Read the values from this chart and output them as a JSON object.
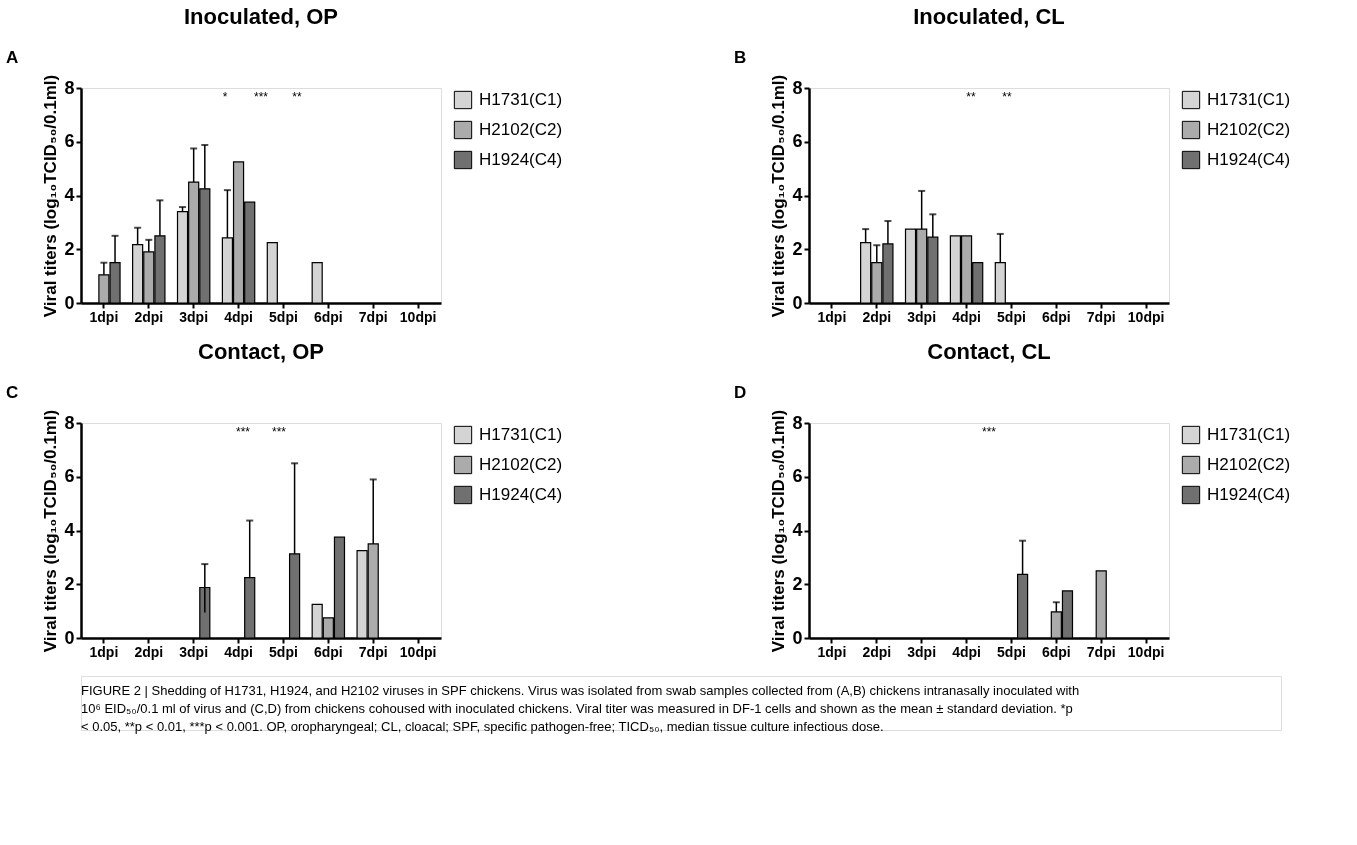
{
  "chart_data": [
    {
      "type": "bar",
      "title": "Inoculated, OP",
      "ylabel": "Viral titers (log₁₀TCID₅₀/0.1ml)",
      "categories": [
        "1dpi",
        "2dpi",
        "3dpi",
        "4dpi",
        "5dpi",
        "6dpi",
        "7dpi",
        "10dpi"
      ],
      "ylim": [
        0,
        8
      ],
      "yticks": [
        0,
        2,
        4,
        6,
        8
      ],
      "grid": false,
      "legend": "top right",
      "series": [
        {
          "name": "H1731(C1)",
          "color": "#d4d4d4",
          "values": [
            null,
            2.17,
            3.4,
            2.42,
            2.25,
            1.5,
            null,
            null
          ],
          "errors": [
            null,
            [
              2.17,
              2.8
            ],
            [
              3.4,
              3.57
            ],
            [
              2.42,
              4.2
            ],
            null,
            null,
            null,
            null
          ]
        },
        {
          "name": "H2102(C2)",
          "color": "#ababab",
          "values": [
            1.05,
            1.9,
            4.5,
            5.25,
            null,
            null,
            null,
            null
          ],
          "errors": [
            [
              1.05,
              1.5
            ],
            [
              1.9,
              2.35
            ],
            [
              4.5,
              5.75
            ],
            null,
            null,
            null,
            null,
            null
          ]
        },
        {
          "name": "H1924(C4)",
          "color": "#707070",
          "values": [
            1.5,
            2.5,
            4.25,
            3.75,
            null,
            null,
            null,
            null
          ],
          "errors": [
            [
              1.5,
              2.5
            ],
            [
              2.5,
              3.82
            ],
            [
              4.25,
              5.88
            ],
            null,
            null,
            null,
            null,
            null
          ]
        }
      ],
      "annotations": [
        "A",
        "*",
        "***",
        "**"
      ]
    },
    {
      "type": "bar",
      "title": "Inoculated, CL",
      "ylabel": "Viral titers (log₁₀TCID₅₀/0.1ml)",
      "categories": [
        "1dpi",
        "2dpi",
        "3dpi",
        "4dpi",
        "5dpi",
        "6dpi",
        "7dpi",
        "10dpi"
      ],
      "ylim": [
        0,
        8
      ],
      "yticks": [
        0,
        2,
        4,
        6,
        8
      ],
      "grid": false,
      "legend": "top right",
      "series": [
        {
          "name": "H1731(C1)",
          "color": "#d4d4d4",
          "values": [
            null,
            2.25,
            2.75,
            2.5,
            1.5,
            null,
            null,
            null
          ],
          "errors": [
            null,
            [
              2.25,
              2.75
            ],
            null,
            null,
            [
              1.5,
              2.57
            ],
            null,
            null,
            null
          ]
        },
        {
          "name": "H2102(C2)",
          "color": "#ababab",
          "values": [
            null,
            1.5,
            2.75,
            2.5,
            null,
            null,
            null,
            null
          ],
          "errors": [
            null,
            [
              1.5,
              2.15
            ],
            [
              2.75,
              4.17
            ],
            null,
            null,
            null,
            null,
            null
          ]
        },
        {
          "name": "H1924(C4)",
          "color": "#707070",
          "values": [
            null,
            2.2,
            2.45,
            1.5,
            null,
            null,
            null,
            null
          ],
          "errors": [
            null,
            [
              2.2,
              3.05
            ],
            [
              2.45,
              3.3
            ],
            null,
            null,
            null,
            null,
            null
          ]
        }
      ],
      "annotations": [
        "B",
        "**",
        "**"
      ]
    },
    {
      "type": "bar",
      "title": "Contact, OP",
      "ylabel": "Viral titers (log₁₀TCID₅₀/0.1ml)",
      "categories": [
        "1dpi",
        "2dpi",
        "3dpi",
        "4dpi",
        "5dpi",
        "6dpi",
        "7dpi",
        "10dpi"
      ],
      "ylim": [
        0,
        8
      ],
      "yticks": [
        0,
        2,
        4,
        6,
        8
      ],
      "grid": false,
      "legend": "top right",
      "series": [
        {
          "name": "H1731(C1)",
          "color": "#d4d4d4",
          "values": [
            null,
            null,
            null,
            null,
            null,
            1.25,
            3.25,
            null
          ]
        },
        {
          "name": "H2102(C2)",
          "color": "#ababab",
          "values": [
            null,
            null,
            null,
            null,
            null,
            0.75,
            3.5,
            null
          ],
          "errors": [
            null,
            null,
            null,
            null,
            null,
            null,
            [
              3.5,
              5.9
            ],
            null
          ]
        },
        {
          "name": "H1924(C4)",
          "color": "#707070",
          "values": [
            null,
            null,
            1.88,
            2.25,
            3.13,
            3.75,
            null,
            null
          ],
          "errors": [
            null,
            null,
            [
              0.95,
              2.75
            ],
            [
              2.25,
              4.37
            ],
            [
              3.13,
              6.5
            ],
            null,
            null,
            null
          ]
        }
      ],
      "annotations": [
        "C",
        "***",
        "***"
      ]
    },
    {
      "type": "bar",
      "title": "Contact, CL",
      "ylabel": "Viral titers (log₁₀TCID₅₀/0.1ml)",
      "categories": [
        "1dpi",
        "2dpi",
        "3dpi",
        "4dpi",
        "5dpi",
        "6dpi",
        "7dpi",
        "10dpi"
      ],
      "ylim": [
        0,
        8
      ],
      "yticks": [
        0,
        2,
        4,
        6,
        8
      ],
      "grid": false,
      "legend": "top right",
      "series": [
        {
          "name": "H1731(C1)",
          "color": "#d4d4d4",
          "values": [
            null,
            null,
            null,
            null,
            null,
            null,
            null,
            null
          ]
        },
        {
          "name": "H2102(C2)",
          "color": "#ababab",
          "values": [
            null,
            null,
            null,
            null,
            null,
            0.97,
            2.5,
            null
          ],
          "errors": [
            null,
            null,
            null,
            null,
            null,
            [
              0.97,
              1.33
            ],
            null,
            null
          ]
        },
        {
          "name": "H1924(C4)",
          "color": "#707070",
          "values": [
            null,
            null,
            null,
            null,
            2.37,
            1.75,
            null,
            null
          ],
          "errors": [
            null,
            null,
            null,
            null,
            [
              2.37,
              3.62
            ],
            null,
            null,
            null
          ]
        }
      ],
      "annotations": [
        "D",
        "***",
        "FIGURE 2 | Shedding of H1731, H1924, and H2102 viruses in SPF chickens. Virus was isolated from swab samples collected from (A,B) chickens intranasally inoculated with 10⁶ EID₅₀/0.1 ml of virus and (C,D) from chickens cohoused with inoculated chickens. Viral titer was measured in DF-1 cells and shown as the mean ± standard deviation. *p < 0.05, **p < 0.01, ***p < 0.001. OP, oropharyngeal; CL, cloacal; SPF, specific pathogen-free; TICD₅₀, median tissue culture infectious dose."
      ]
    }
  ]
}
